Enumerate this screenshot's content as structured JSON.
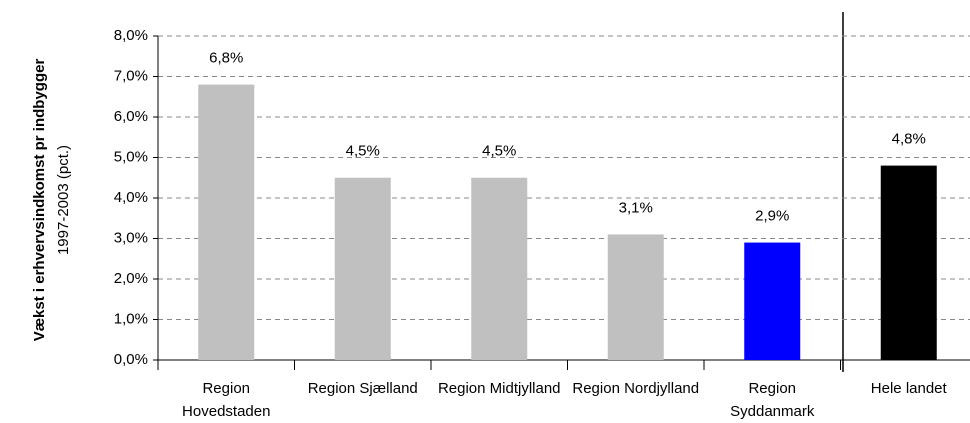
{
  "chart_data": {
    "type": "bar",
    "ylabel": "Vækst i erhvervsindkomst pr indbygger",
    "ylabel_sub": "1997-2003 (pct.)",
    "categories": [
      "Region Hovedstaden",
      "Region Sjælland",
      "Region Midtjylland",
      "Region Nordjylland",
      "Region Syddanmark",
      "Hele landet"
    ],
    "values": [
      6.8,
      4.5,
      4.5,
      3.1,
      2.9,
      4.8
    ],
    "value_labels": [
      "6,8%",
      "4,5%",
      "4,5%",
      "3,1%",
      "2,9%",
      "4,8%"
    ],
    "colors": [
      "#c0c0c0",
      "#c0c0c0",
      "#c0c0c0",
      "#c0c0c0",
      "#0000ff",
      "#000000"
    ],
    "ylim": [
      0,
      8
    ],
    "yticks": [
      {
        "value": 0,
        "label": "0,0%"
      },
      {
        "value": 1,
        "label": "1,0%"
      },
      {
        "value": 2,
        "label": "2,0%"
      },
      {
        "value": 3,
        "label": "3,0%"
      },
      {
        "value": 4,
        "label": "4,0%"
      },
      {
        "value": 5,
        "label": "5,0%"
      },
      {
        "value": 6,
        "label": "6,0%"
      },
      {
        "value": 7,
        "label": "7,0%"
      },
      {
        "value": 8,
        "label": "8,0%"
      }
    ],
    "grid": true
  }
}
